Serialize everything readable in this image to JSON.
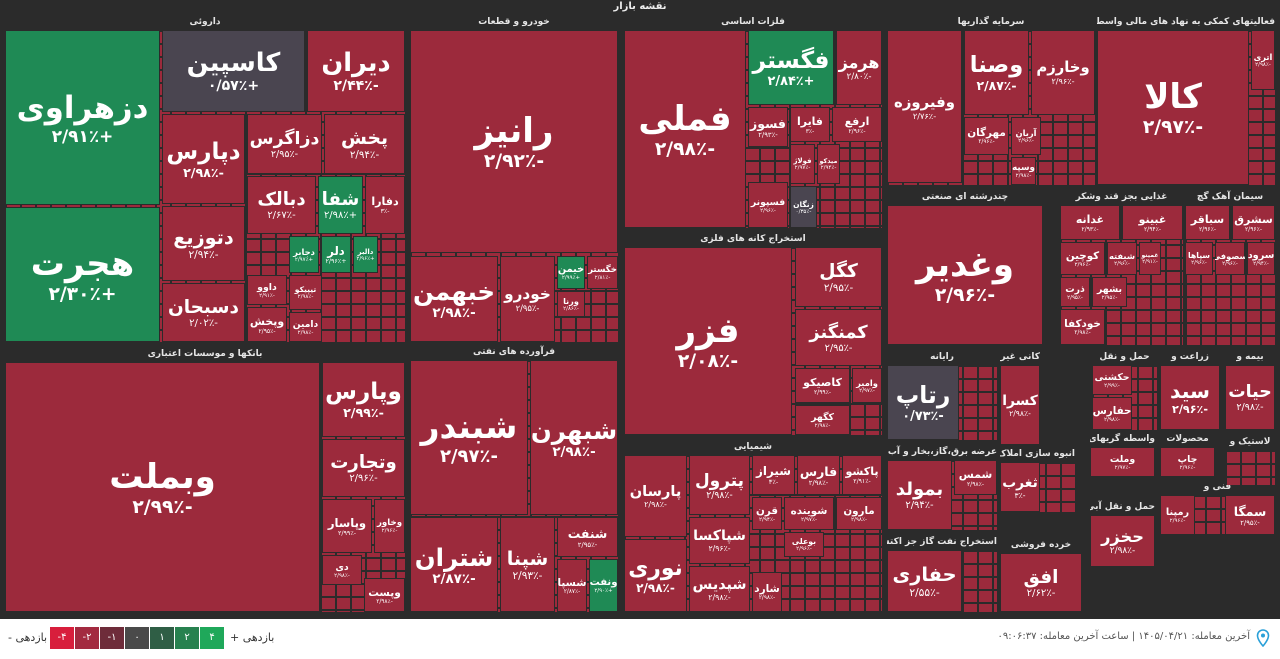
{
  "title": "نقشه بازار",
  "sectors": [
    {
      "name": "داروئی",
      "tiles": [
        {
          "name": "دزهراوی",
          "change": "+۲/۹۱٪",
          "color": "#1f8a55"
        },
        {
          "name": "هجرت",
          "change": "+۲/۳۰٪",
          "color": "#1f8a55"
        },
        {
          "name": "کاسپین",
          "change": "+۰/۵۷٪",
          "color": "#4a4550"
        },
        {
          "name": "دیران",
          "change": "-۲/۴۴٪",
          "color": "#9c2a3c"
        },
        {
          "name": "دپارس",
          "change": "-۲/۹۸٪",
          "color": "#9c2a3c"
        },
        {
          "name": "دزاگرس",
          "change": "-۲/۹۵٪",
          "color": "#9c2a3c"
        },
        {
          "name": "پخش",
          "change": "-۲/۹۴٪",
          "color": "#9c2a3c"
        },
        {
          "name": "دتوزیع",
          "change": "-۲/۹۴٪",
          "color": "#9c2a3c"
        },
        {
          "name": "دبالک",
          "change": "-۲/۶۷٪",
          "color": "#9c2a3c"
        },
        {
          "name": "شفا",
          "change": "+۲/۹۸٪",
          "color": "#1f8a55"
        },
        {
          "name": "دفارا",
          "change": "-۳٪",
          "color": "#9c2a3c"
        },
        {
          "name": "دسبحان",
          "change": "-۲/۰۲٪",
          "color": "#9c2a3c"
        },
        {
          "name": "داوو",
          "change": "-۲/۹۱٪",
          "color": "#9c2a3c"
        },
        {
          "name": "وپخش",
          "change": "-۲/۹۵٪",
          "color": "#9c2a3c"
        },
        {
          "name": "تیپیکو",
          "change": "-۲/۹۸٪",
          "color": "#9c2a3c"
        },
        {
          "name": "دامین",
          "change": "-۲/۹۸٪",
          "color": "#9c2a3c"
        },
        {
          "name": "دجابر",
          "change": "+۲/۹۷٪",
          "color": "#1f8a55"
        },
        {
          "name": "دلر",
          "change": "+۲/۹۶٪",
          "color": "#1f8a55"
        },
        {
          "name": "دالبر",
          "change": "+۲/۹۶٪",
          "color": "#1f8a55"
        }
      ]
    },
    {
      "name": "خودرو و قطعات",
      "tiles": [
        {
          "name": "رانیز",
          "change": "-۲/۹۲٪",
          "color": "#9c2a3c"
        },
        {
          "name": "خبهمن",
          "change": "-۲/۹۸٪",
          "color": "#9c2a3c"
        },
        {
          "name": "خودرو",
          "change": "-۲/۹۵٪",
          "color": "#9c2a3c"
        },
        {
          "name": "خیمن",
          "change": "+۲/۹۹٪",
          "color": "#1f8a55"
        },
        {
          "name": "خگستر",
          "change": "-۲/۸۱٪",
          "color": "#9c2a3c"
        },
        {
          "name": "ورنا",
          "change": "-۲/۸۶٪",
          "color": "#9c2a3c"
        }
      ]
    },
    {
      "name": "بانکها و موسسات اعتباری",
      "tiles": [
        {
          "name": "وبملت",
          "change": "-۲/۹۹٪",
          "color": "#9c2a3c"
        },
        {
          "name": "وپارس",
          "change": "-۲/۹۹٪",
          "color": "#9c2a3c"
        },
        {
          "name": "وتجارت",
          "change": "-۲/۹۶٪",
          "color": "#9c2a3c"
        },
        {
          "name": "وپاسار",
          "change": "-۲/۹۹٪",
          "color": "#9c2a3c"
        },
        {
          "name": "وخاور",
          "change": "-۲/۹۶٪",
          "color": "#9c2a3c"
        },
        {
          "name": "دی",
          "change": "-۲/۹۸٪",
          "color": "#9c2a3c"
        },
        {
          "name": "وپست",
          "change": "-۲/۹۸٪",
          "color": "#9c2a3c"
        }
      ]
    },
    {
      "name": "فرآورده های نفتی",
      "tiles": [
        {
          "name": "شبندر",
          "change": "-۲/۹۷٪",
          "color": "#9c2a3c"
        },
        {
          "name": "شبهرن",
          "change": "-۲/۹۸٪",
          "color": "#9c2a3c"
        },
        {
          "name": "شتران",
          "change": "-۲/۸۷٪",
          "color": "#9c2a3c"
        },
        {
          "name": "شپنا",
          "change": "-۲/۹۳٪",
          "color": "#9c2a3c"
        },
        {
          "name": "شنفت",
          "change": "-۲/۹۵٪",
          "color": "#9c2a3c"
        },
        {
          "name": "شسپا",
          "change": "-۲/۸۷٪",
          "color": "#9c2a3c"
        },
        {
          "name": "ونفت",
          "change": "+۲/۹۰٪",
          "color": "#1f8a55"
        }
      ]
    },
    {
      "name": "فلزات اساسی",
      "tiles": [
        {
          "name": "فملی",
          "change": "-۲/۹۸٪",
          "color": "#9c2a3c"
        },
        {
          "name": "فگستر",
          "change": "+۲/۸۴٪",
          "color": "#1f8a55"
        },
        {
          "name": "هرمز",
          "change": "-۲/۸۰٪",
          "color": "#9c2a3c"
        },
        {
          "name": "فایرا",
          "change": "-۳٪",
          "color": "#9c2a3c"
        },
        {
          "name": "ارفع",
          "change": "-۲/۹۶٪",
          "color": "#9c2a3c"
        },
        {
          "name": "فسوز",
          "change": "-۲/۹۳٪",
          "color": "#9c2a3c"
        },
        {
          "name": "فولاژ",
          "change": "-۲/۹۷٪",
          "color": "#9c2a3c"
        },
        {
          "name": "میدکو",
          "change": "-۲/۹۴٪",
          "color": "#9c2a3c"
        },
        {
          "name": "فسپونر",
          "change": "-۲/۹۶٪",
          "color": "#9c2a3c"
        },
        {
          "name": "زنگان",
          "change": "-۰/۳۵٪",
          "color": "#4a4550"
        }
      ]
    },
    {
      "name": "استخراج کانه های فلزی",
      "tiles": [
        {
          "name": "فزر",
          "change": "-۲/۰۸٪",
          "color": "#9c2a3c"
        },
        {
          "name": "کگل",
          "change": "-۲/۹۵٪",
          "color": "#9c2a3c"
        },
        {
          "name": "کمنگنز",
          "change": "-۲/۹۵٪",
          "color": "#9c2a3c"
        },
        {
          "name": "کاصیکو",
          "change": "-۲/۹۹٪",
          "color": "#9c2a3c"
        },
        {
          "name": "وامیر",
          "change": "-۲/۹۷٪",
          "color": "#9c2a3c"
        },
        {
          "name": "کگهر",
          "change": "-۲/۹۸٪",
          "color": "#9c2a3c"
        }
      ]
    },
    {
      "name": "شیمیایی",
      "tiles": [
        {
          "name": "پارسان",
          "change": "-۲/۹۸٪",
          "color": "#9c2a3c"
        },
        {
          "name": "نوری",
          "change": "-۲/۹۸٪",
          "color": "#9c2a3c"
        },
        {
          "name": "پترول",
          "change": "-۲/۹۸٪",
          "color": "#9c2a3c"
        },
        {
          "name": "شپاکسا",
          "change": "-۲/۹۶٪",
          "color": "#9c2a3c"
        },
        {
          "name": "شپدیس",
          "change": "-۲/۹۸٪",
          "color": "#9c2a3c"
        },
        {
          "name": "شیراز",
          "change": "-۳٪",
          "color": "#9c2a3c"
        },
        {
          "name": "فارس",
          "change": "-۲/۹۸٪",
          "color": "#9c2a3c"
        },
        {
          "name": "پاکشو",
          "change": "-۲/۹۱٪",
          "color": "#9c2a3c"
        },
        {
          "name": "قرن",
          "change": "-۲/۹۴٪",
          "color": "#9c2a3c"
        },
        {
          "name": "شوینده",
          "change": "-۲/۹۷٪",
          "color": "#9c2a3c"
        },
        {
          "name": "مارون",
          "change": "-۲/۹۸٪",
          "color": "#9c2a3c"
        },
        {
          "name": "بوعلی",
          "change": "-۲/۹۶٪",
          "color": "#9c2a3c"
        },
        {
          "name": "شارد",
          "change": "-۲/۹۸٪",
          "color": "#9c2a3c"
        }
      ]
    },
    {
      "name": "سرمایه گذاریها",
      "tiles": [
        {
          "name": "وفیروزه",
          "change": "-۲/۷۶٪",
          "color": "#9c2a3c"
        },
        {
          "name": "وصنا",
          "change": "-۲/۸۷٪",
          "color": "#9c2a3c"
        },
        {
          "name": "وخارزم",
          "change": "-۲/۹۶٪",
          "color": "#9c2a3c"
        },
        {
          "name": "مهرگان",
          "change": "-۲/۹۶٪",
          "color": "#9c2a3c"
        },
        {
          "name": "آریان",
          "change": "-۲/۹۶٪",
          "color": "#9c2a3c"
        },
        {
          "name": "وسپه",
          "change": "-۲/۹۸٪",
          "color": "#9c2a3c"
        }
      ]
    },
    {
      "name": "فعالیتهای کمکی به نهاد های مالی واسط",
      "tiles": [
        {
          "name": "کالا",
          "change": "-۲/۹۷٪",
          "color": "#9c2a3c"
        },
        {
          "name": "اتری",
          "change": "-۲/۹۸٪",
          "color": "#9c2a3c"
        }
      ]
    },
    {
      "name": "چندرشته ای صنعتی",
      "tiles": [
        {
          "name": "وغدیر",
          "change": "-۲/۹۶٪",
          "color": "#9c2a3c"
        }
      ]
    },
    {
      "name": "غذایی بجز قند وشکر",
      "tiles": [
        {
          "name": "غدانه",
          "change": "-۲/۹۳٪",
          "color": "#9c2a3c"
        },
        {
          "name": "غبینو",
          "change": "-۲/۹۴٪",
          "color": "#9c2a3c"
        },
        {
          "name": "کوچین",
          "change": "-۲/۹۶٪",
          "color": "#9c2a3c"
        },
        {
          "name": "شیفته",
          "change": "-۲/۹۶٪",
          "color": "#9c2a3c"
        },
        {
          "name": "غمینو",
          "change": "-۲/۹۱٪",
          "color": "#9c2a3c"
        },
        {
          "name": "ذرت",
          "change": "-۲/۹۵٪",
          "color": "#9c2a3c"
        },
        {
          "name": "بشهر",
          "change": "-۲/۹۵٪",
          "color": "#9c2a3c"
        },
        {
          "name": "خودکفا",
          "change": "-۲/۹۸٪",
          "color": "#9c2a3c"
        }
      ]
    },
    {
      "name": "سیمان آهک گچ",
      "tiles": [
        {
          "name": "سباقر",
          "change": "-۲/۹۶٪",
          "color": "#9c2a3c"
        },
        {
          "name": "سشرق",
          "change": "-۲/۹۶٪",
          "color": "#9c2a3c"
        },
        {
          "name": "سپاها",
          "change": "-۲/۹۶٪",
          "color": "#9c2a3c"
        },
        {
          "name": "سصوفی",
          "change": "-۲/۹۶٪",
          "color": "#9c2a3c"
        },
        {
          "name": "سرود",
          "change": "-۲/۹۴٪",
          "color": "#9c2a3c"
        }
      ]
    },
    {
      "name": "رایانه",
      "tiles": [
        {
          "name": "رتاپ",
          "change": "-۰/۷۳٪",
          "color": "#4a4550"
        }
      ]
    },
    {
      "name": "کانی غیر فلزی",
      "tiles": [
        {
          "name": "کسرا",
          "change": "-۲/۹۸٪",
          "color": "#9c2a3c"
        }
      ]
    },
    {
      "name": "حمل و نقل",
      "tiles": [
        {
          "name": "حکشتی",
          "change": "-۲/۹۹٪",
          "color": "#9c2a3c"
        },
        {
          "name": "حفارس",
          "change": "-۲/۹۸٪",
          "color": "#9c2a3c"
        }
      ]
    },
    {
      "name": "زراعت و",
      "tiles": [
        {
          "name": "سید",
          "change": "-۲/۹۶٪",
          "color": "#9c2a3c"
        }
      ]
    },
    {
      "name": "بیمه و",
      "tiles": [
        {
          "name": "حیات",
          "change": "-۲/۹۸٪",
          "color": "#9c2a3c"
        }
      ]
    },
    {
      "name": "عرضه برق،گاز،بخار و آب گرم",
      "tiles": [
        {
          "name": "بمولد",
          "change": "-۲/۹۴٪",
          "color": "#9c2a3c"
        },
        {
          "name": "شمس",
          "change": "-۲/۹۸٪",
          "color": "#9c2a3c"
        }
      ]
    },
    {
      "name": "استخراج نفت گاز جز اکتشاف",
      "tiles": [
        {
          "name": "حفاری",
          "change": "-۲/۵۵٪",
          "color": "#9c2a3c"
        }
      ]
    },
    {
      "name": "خرده فروشی",
      "tiles": [
        {
          "name": "افق",
          "change": "-۲/۶۲٪",
          "color": "#9c2a3c"
        }
      ]
    },
    {
      "name": "انبوه سازی املاک و",
      "tiles": [
        {
          "name": "ثغرب",
          "change": "-۳٪",
          "color": "#9c2a3c"
        }
      ]
    },
    {
      "name": "واسطه گریهای مالی",
      "tiles": [
        {
          "name": "وملت",
          "change": "-۲/۹۷٪",
          "color": "#9c2a3c"
        }
      ]
    },
    {
      "name": "محصولات",
      "tiles": [
        {
          "name": "چاپ",
          "change": "-۲/۹۶٪",
          "color": "#9c2a3c"
        }
      ]
    },
    {
      "name": "حمل و نقل آبی",
      "tiles": [
        {
          "name": "حخزر",
          "change": "-۲/۹۸٪",
          "color": "#9c2a3c"
        }
      ]
    },
    {
      "name": "فنی و",
      "tiles": [
        {
          "name": "رمپنا",
          "change": "-۲/۹۶٪",
          "color": "#9c2a3c"
        },
        {
          "name": "سمگا",
          "change": "-۲/۹۵٪",
          "color": "#9c2a3c"
        }
      ]
    },
    {
      "name": "لاستیک و",
      "tiles": []
    }
  ],
  "footer": {
    "legend_low": "بازدهی -",
    "legend_high": "بازدهی +",
    "legend": [
      {
        "label": "-۴",
        "color": "#d81e3c"
      },
      {
        "label": "-۲",
        "color": "#a32a40"
      },
      {
        "label": "-۱",
        "color": "#6e2c3a"
      },
      {
        "label": "۰",
        "color": "#4a4a4a"
      },
      {
        "label": "۱",
        "color": "#2f5e45"
      },
      {
        "label": "۲",
        "color": "#27814f"
      },
      {
        "label": "۴",
        "color": "#1fa85a"
      }
    ],
    "last_trade": "آخرین معامله: ۱۴۰۵/۰۴/۲۱ | ساعت آخرین معامله: ۰۹:۰۶:۳۷"
  }
}
